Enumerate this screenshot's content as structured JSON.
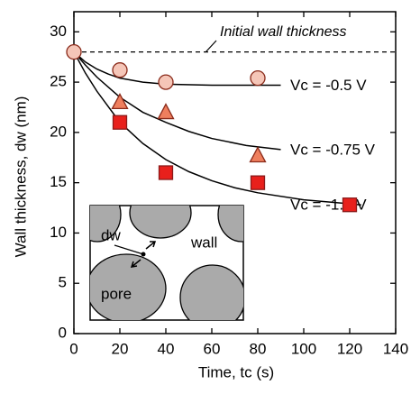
{
  "chart_data": {
    "type": "scatter",
    "xlabel": "Time, tc (s)",
    "ylabel": "Wall thickness, dw (nm)",
    "annotation": "Initial wall thickness",
    "reference_line": 28,
    "xlim": [
      0,
      140
    ],
    "xticks": [
      0,
      20,
      40,
      60,
      80,
      100,
      120,
      140
    ],
    "ylim": [
      0,
      32
    ],
    "yticks": [
      0,
      5,
      10,
      15,
      20,
      25,
      30
    ],
    "series": [
      {
        "name": "Vc = -0.5 V",
        "marker": "circle",
        "color": "#f5c6b8",
        "x": [
          0,
          20,
          40,
          80
        ],
        "values": [
          28,
          26.2,
          25,
          25.4
        ],
        "fit": {
          "x": [
            0,
            5,
            10,
            15,
            20,
            30,
            40,
            60,
            90
          ],
          "values": [
            28,
            27,
            26.3,
            25.8,
            25.4,
            25,
            24.8,
            24.7,
            24.7
          ]
        }
      },
      {
        "name": "Vc = -0.75 V",
        "marker": "triangle",
        "color": "#ef7f5e",
        "x": [
          20,
          40,
          80
        ],
        "values": [
          23,
          22,
          17.7
        ],
        "fit": {
          "x": [
            0,
            5,
            10,
            20,
            30,
            40,
            50,
            60,
            75,
            90
          ],
          "values": [
            28,
            26.7,
            25.5,
            23.5,
            22,
            21,
            20.1,
            19.4,
            18.7,
            18.3
          ]
        }
      },
      {
        "name": "Vc = -1.0 V",
        "marker": "square",
        "color": "#e8201c",
        "x": [
          20,
          40,
          80,
          120
        ],
        "values": [
          21,
          16,
          15,
          12.8
        ],
        "fit": {
          "x": [
            0,
            5,
            10,
            20,
            30,
            40,
            50,
            60,
            70,
            80,
            100,
            125
          ],
          "values": [
            28,
            25.9,
            24.1,
            21,
            18.9,
            17.3,
            16.1,
            15.2,
            14.5,
            14,
            13.3,
            12.8
          ]
        }
      }
    ],
    "inset": {
      "labels": [
        "dw",
        "wall",
        "pore"
      ]
    }
  }
}
